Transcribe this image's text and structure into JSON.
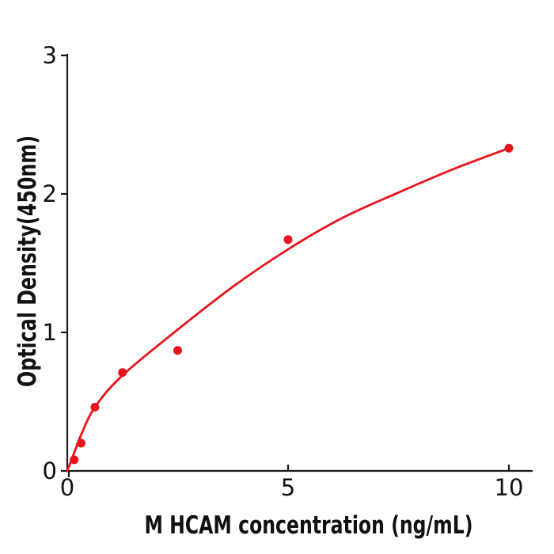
{
  "figure": {
    "background": "#ffffff",
    "description": "ELISA standard curve, red data points with fitted curve"
  },
  "chart_data": {
    "type": "scatter",
    "title": "",
    "xlabel": "M  HCAM concentration (ng/mL)",
    "ylabel": "Optical Density(450nm)",
    "xlim": [
      0,
      10.5
    ],
    "ylim": [
      0,
      3
    ],
    "x_ticks": [
      0,
      5,
      10
    ],
    "y_ticks": [
      0,
      1,
      2,
      3
    ],
    "grid": false,
    "legend": "none",
    "series": [
      {
        "name": "standard-data-points",
        "type": "scatter",
        "color": "#e8131c",
        "marker": "circle",
        "x": [
          0.156,
          0.313,
          0.625,
          1.25,
          2.5,
          5,
          10
        ],
        "y": [
          0.08,
          0.2,
          0.46,
          0.71,
          0.87,
          1.67,
          2.33
        ]
      },
      {
        "name": "fitted-curve",
        "type": "line",
        "color": "#e8131c",
        "x": [
          0,
          0.156,
          0.313,
          0.625,
          1.25,
          2.5,
          3.75,
          5,
          6.25,
          7.5,
          8.75,
          10
        ],
        "y": [
          0,
          0.13,
          0.26,
          0.46,
          0.69,
          1.02,
          1.33,
          1.6,
          1.83,
          2.01,
          2.18,
          2.33
        ]
      }
    ]
  },
  "colors": {
    "accent_red": "#e8131c",
    "axis": "#1a1a1a",
    "background": "#ffffff"
  }
}
